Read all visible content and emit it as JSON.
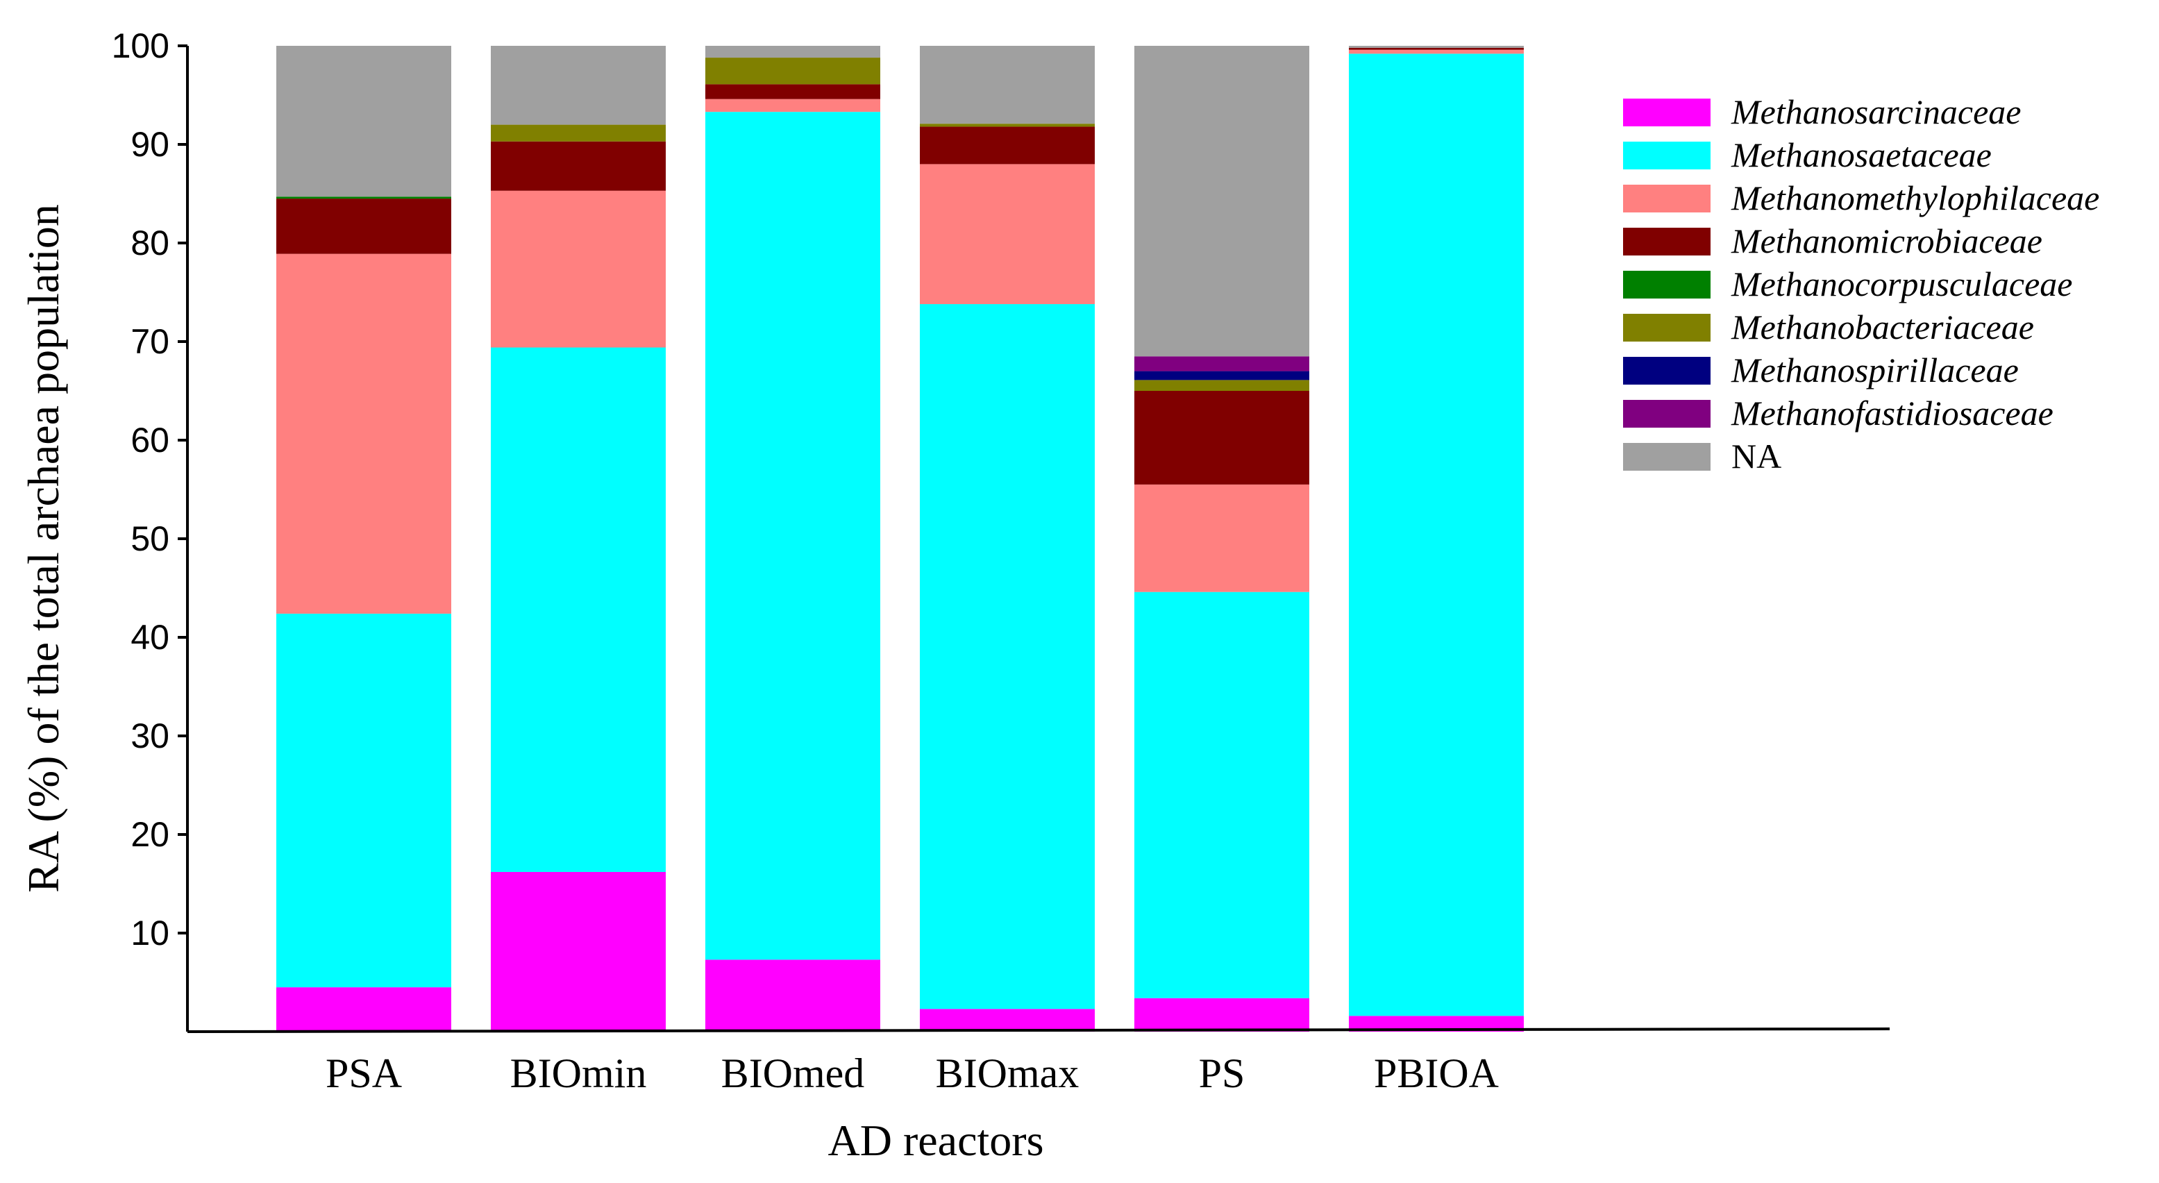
{
  "chart_data": {
    "type": "bar",
    "stacked": true,
    "title": "",
    "xlabel": "AD reactors",
    "ylabel": "RA (%) of the total archaea population",
    "ylim": [
      0,
      100
    ],
    "yticks": [
      10,
      20,
      30,
      40,
      50,
      60,
      70,
      80,
      90,
      100
    ],
    "categories": [
      "PSA",
      "BIOmin",
      "BIOmed",
      "BIOmax",
      "PS",
      "PBIOA"
    ],
    "legend_position": "top-right",
    "series": [
      {
        "name": "Methanosarcinaceae",
        "italic": true,
        "color": "#ff00ff",
        "values": [
          4.5,
          16.2,
          7.3,
          2.3,
          3.4,
          1.6
        ]
      },
      {
        "name": "Methanosaetaceae",
        "italic": true,
        "color": "#00ffff",
        "values": [
          37.9,
          53.2,
          86.0,
          71.5,
          41.2,
          97.6
        ]
      },
      {
        "name": "Methanomethylophilaceae",
        "italic": true,
        "color": "#ff8080",
        "values": [
          36.5,
          15.9,
          1.3,
          14.2,
          10.9,
          0.4
        ]
      },
      {
        "name": "Methanomicrobiaceae",
        "italic": true,
        "color": "#800000",
        "values": [
          5.6,
          5.0,
          1.5,
          3.8,
          9.5,
          0.2
        ]
      },
      {
        "name": "Methanocorpusculaceae",
        "italic": true,
        "color": "#008000",
        "values": [
          0.2,
          0.0,
          0.0,
          0.0,
          0.0,
          0.0
        ]
      },
      {
        "name": "Methanobacteriaceae",
        "italic": true,
        "color": "#808000",
        "values": [
          0.0,
          1.7,
          2.7,
          0.3,
          1.1,
          0.0
        ]
      },
      {
        "name": "Methanospirillaceae",
        "italic": true,
        "color": "#000080",
        "values": [
          0.0,
          0.0,
          0.0,
          0.0,
          0.9,
          0.0
        ]
      },
      {
        "name": "Methanofastidiosaceae",
        "italic": true,
        "color": "#800080",
        "values": [
          0.0,
          0.0,
          0.0,
          0.0,
          1.5,
          0.0
        ]
      },
      {
        "name": "NA",
        "italic": false,
        "color": "#a0a0a0",
        "values": [
          15.3,
          8.0,
          1.2,
          7.9,
          31.5,
          0.2
        ]
      }
    ]
  }
}
